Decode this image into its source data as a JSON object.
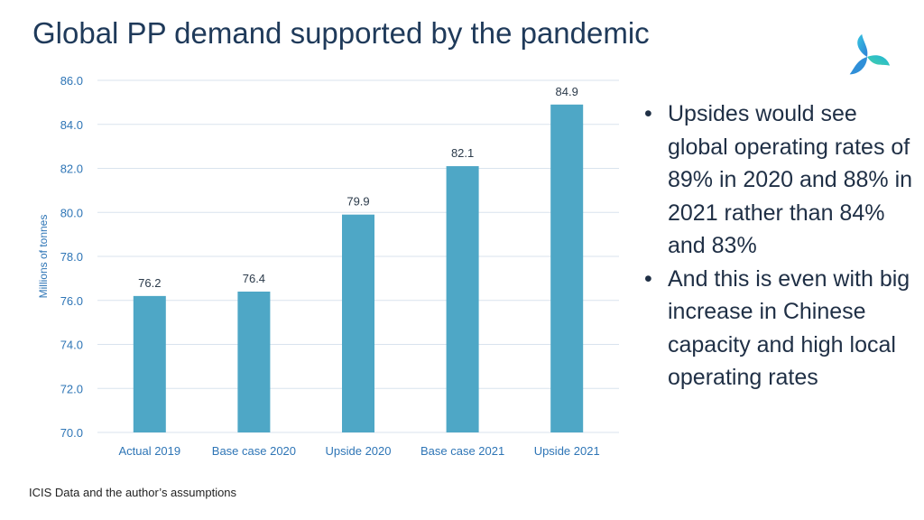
{
  "slide": {
    "title": "Global PP demand supported by the pandemic",
    "source": "ICIS Data and the author’s assumptions",
    "logo_icon": "triskelion-logo-icon",
    "bullets": [
      "Upsides would see global operating rates of 89% in 2020 and 88% in 2021 rather than 84% and 83%",
      "And this is even with big increase in Chinese capacity and high local operating rates"
    ]
  },
  "colors": {
    "bar": "#4ea7c6",
    "axis_text": "#2e75b6",
    "gridline": "#d9e3ee",
    "title": "#1f3a5a"
  },
  "chart_data": {
    "type": "bar",
    "categories": [
      "Actual  2019",
      "Base case 2020",
      "Upside 2020",
      "Base case 2021",
      "Upside 2021"
    ],
    "values": [
      76.2,
      76.4,
      79.9,
      82.1,
      84.9
    ],
    "data_labels": [
      "76.2",
      "76.4",
      "79.9",
      "82.1",
      "84.9"
    ],
    "title": "",
    "xlabel": "",
    "ylabel": "Millions of tonnes",
    "ylim": [
      70,
      86
    ],
    "yticks": [
      "70.0",
      "72.0",
      "74.0",
      "76.0",
      "78.0",
      "80.0",
      "82.0",
      "84.0",
      "86.0"
    ],
    "grid": true,
    "legend": "none"
  }
}
